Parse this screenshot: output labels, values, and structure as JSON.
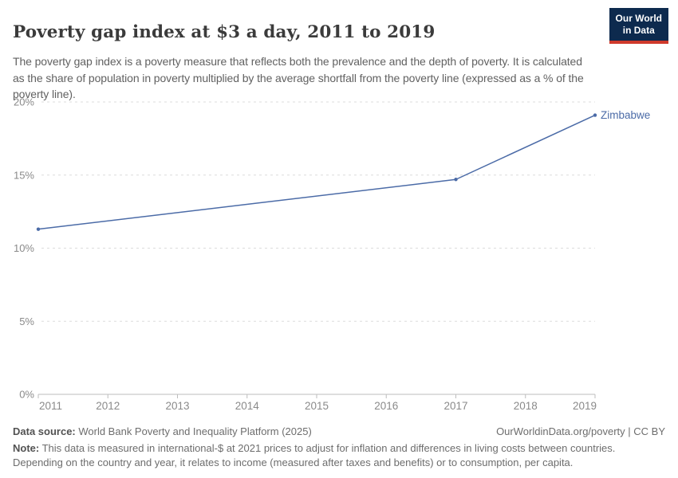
{
  "header": {
    "title": "Poverty gap index at $3 a day, 2011 to 2019",
    "subtitle": "The poverty gap index is a poverty measure that reflects both the prevalence and the depth of poverty. It is calculated as the share of population in poverty multiplied by the average shortfall from the poverty line (expressed as a % of the poverty line).",
    "logo": {
      "line1": "Our World",
      "line2": "in Data",
      "bg_color": "#0d2a4e",
      "stripe_color": "#cf3a2c"
    }
  },
  "chart_data": {
    "type": "line",
    "title": "Poverty gap index at $3 a day, 2011 to 2019",
    "xlim": [
      2011,
      2019
    ],
    "ylim": [
      0,
      20
    ],
    "x_ticks": [
      2011,
      2012,
      2013,
      2014,
      2015,
      2016,
      2017,
      2018,
      2019
    ],
    "y_ticks": [
      {
        "value": 0,
        "label": "0%"
      },
      {
        "value": 5,
        "label": "5%"
      },
      {
        "value": 10,
        "label": "10%"
      },
      {
        "value": 15,
        "label": "15%"
      },
      {
        "value": 20,
        "label": "20%"
      }
    ],
    "grid": "horizontal-dashed",
    "legend_position": "end-of-line-label",
    "series": [
      {
        "name": "Zimbabwe",
        "color": "#4b6ba7",
        "points": [
          {
            "x": 2011,
            "y": 11.3
          },
          {
            "x": 2017,
            "y": 14.7
          },
          {
            "x": 2019,
            "y": 19.1
          }
        ]
      }
    ]
  },
  "footer": {
    "datasource_label": "Data source:",
    "datasource_value": " World Bank Poverty and Inequality Platform (2025)",
    "attribution": "OurWorldinData.org/poverty | CC BY",
    "note_label": "Note:",
    "note_value": " This data is measured in international-$ at 2021 prices to adjust for inflation and differences in living costs between countries. Depending on the country and year, it relates to income (measured after taxes and benefits) or to consumption, per capita."
  }
}
